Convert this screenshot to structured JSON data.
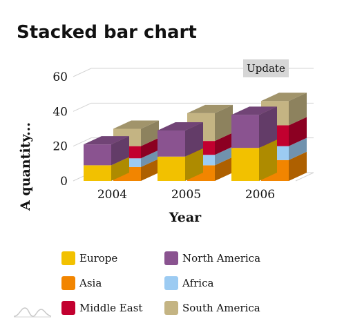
{
  "ui": {
    "update_label": "Update"
  },
  "legend_order": [
    "Europe",
    "North America",
    "Asia",
    "Africa",
    "Middle East",
    "South America"
  ],
  "chart_data": {
    "type": "bar",
    "stacked": true,
    "three_d": true,
    "title": "Stacked bar chart",
    "xlabel": "Year",
    "ylabel": "A quantity...",
    "ylim": [
      0,
      60
    ],
    "yticks": [
      0,
      20,
      40,
      60
    ],
    "categories": [
      "2004",
      "2005",
      "2006"
    ],
    "stacks": [
      {
        "series": [
          {
            "name": "Europe",
            "color": "#f2c100",
            "values": [
              9,
              14,
              19
            ]
          },
          {
            "name": "North America",
            "color": "#8a5390",
            "values": [
              12,
              15,
              19
            ]
          }
        ]
      },
      {
        "series": [
          {
            "name": "Asia",
            "color": "#f28500",
            "values": [
              8,
              9,
              12
            ]
          },
          {
            "name": "Africa",
            "color": "#9ccbf2",
            "values": [
              5,
              6,
              8
            ]
          },
          {
            "name": "Middle East",
            "color": "#c2002f",
            "values": [
              7,
              8,
              12
            ]
          },
          {
            "name": "South America",
            "color": "#c4b483",
            "values": [
              10,
              16,
              14
            ]
          }
        ]
      }
    ],
    "grid": true,
    "legend_position": "bottom"
  }
}
